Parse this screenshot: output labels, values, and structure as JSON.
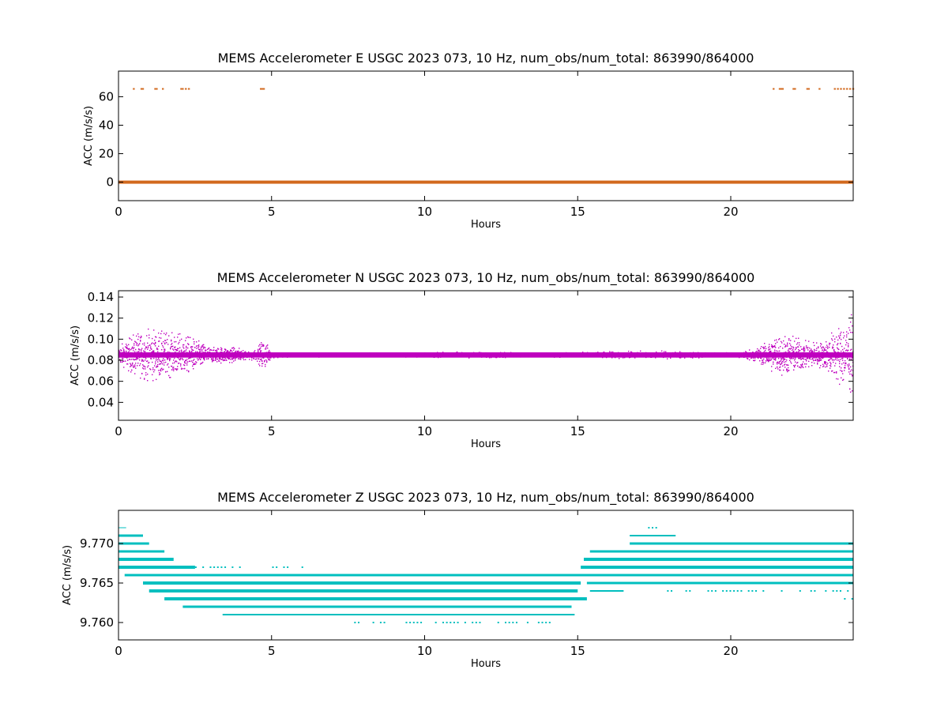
{
  "figure": {
    "background": "#ffffff"
  },
  "chart_data": [
    {
      "type": "scatter",
      "title": "MEMS Accelerometer E USGC 2023 073, 10 Hz, num_obs/num_total: 863990/864000",
      "xlabel": "Hours",
      "ylabel": "ACC (m/s/s)",
      "xlim": [
        0,
        24
      ],
      "ylim": [
        -13,
        78
      ],
      "xticks": [
        0,
        5,
        10,
        15,
        20
      ],
      "yticks": [
        0,
        20,
        40,
        60
      ],
      "grid": false,
      "color": "#d2691e",
      "series": [
        {
          "kind": "band",
          "x": [
            0,
            24
          ],
          "y": [
            0.0,
            0.0
          ],
          "spread": 0.6
        },
        {
          "kind": "spikes",
          "value": 65.5,
          "x": [
            0.5,
            0.75,
            0.8,
            1.2,
            1.25,
            1.45,
            2.05,
            2.1,
            2.2,
            2.3,
            4.65,
            4.7,
            4.75,
            21.4,
            21.6,
            21.65,
            21.7,
            22.05,
            22.1,
            22.5,
            22.55,
            22.9,
            23.4,
            23.5,
            23.6,
            23.7,
            23.8,
            23.9,
            24.0
          ]
        }
      ]
    },
    {
      "type": "scatter",
      "title": "MEMS Accelerometer N USGC 2023 073, 10 Hz, num_obs/num_total: 863990/864000",
      "xlabel": "Hours",
      "ylabel": "ACC (m/s/s)",
      "xlim": [
        0,
        24
      ],
      "ylim": [
        0.023,
        0.146
      ],
      "xticks": [
        0,
        5,
        10,
        15,
        20
      ],
      "yticks": [
        0.04,
        0.06,
        0.08,
        0.1,
        0.12,
        0.14
      ],
      "ytick_labels": [
        "0.04",
        "0.06",
        "0.08",
        "0.10",
        "0.12",
        "0.14"
      ],
      "grid": false,
      "color": "#bf00bf",
      "series": [
        {
          "kind": "noise_envelope",
          "center": 0.085,
          "x": [
            0.0,
            0.5,
            1.0,
            1.5,
            2.0,
            2.5,
            3.0,
            3.5,
            4.0,
            4.5,
            4.7,
            5.0,
            7.0,
            10.0,
            11.0,
            14.0,
            17.5,
            20.0,
            20.9,
            21.5,
            22.0,
            22.5,
            23.0,
            23.5,
            24.0
          ],
          "half_range": [
            0.008,
            0.02,
            0.025,
            0.022,
            0.02,
            0.015,
            0.007,
            0.008,
            0.006,
            0.005,
            0.016,
            0.003,
            0.002,
            0.002,
            0.003,
            0.002,
            0.004,
            0.002,
            0.007,
            0.02,
            0.018,
            0.013,
            0.012,
            0.028,
            0.04
          ]
        }
      ]
    },
    {
      "type": "scatter",
      "title": "MEMS Accelerometer Z USGC 2023 073, 10 Hz, num_obs/num_total: 863990/864000",
      "xlabel": "Hours",
      "ylabel": "ACC (m/s/s)",
      "xlim": [
        0,
        24
      ],
      "ylim": [
        9.7578,
        9.7742
      ],
      "xticks": [
        0,
        5,
        10,
        15,
        20
      ],
      "yticks": [
        9.76,
        9.765,
        9.77
      ],
      "ytick_labels": [
        "9.760",
        "9.765",
        "9.770"
      ],
      "grid": false,
      "color": "#00bfbf",
      "series": [
        {
          "kind": "quantized_levels",
          "segments": [
            {
              "y": 9.772,
              "x0": 0.0,
              "x1": 0.25,
              "w": 1
            },
            {
              "y": 9.771,
              "x0": 0.0,
              "x1": 0.8,
              "w": 3
            },
            {
              "y": 9.77,
              "x0": 0.0,
              "x1": 1.0,
              "w": 3
            },
            {
              "y": 9.769,
              "x0": 0.0,
              "x1": 1.5,
              "w": 3
            },
            {
              "y": 9.768,
              "x0": 0.0,
              "x1": 1.8,
              "w": 4
            },
            {
              "y": 9.767,
              "x0": 0.0,
              "x1": 2.5,
              "w": 4
            },
            {
              "y": 9.767,
              "x0": 2.5,
              "x1": 6.0,
              "w": 1,
              "dotted": true
            },
            {
              "y": 9.766,
              "x0": 0.2,
              "x1": 15.5,
              "w": 3
            },
            {
              "y": 9.765,
              "x0": 0.8,
              "x1": 15.1,
              "w": 4
            },
            {
              "y": 9.764,
              "x0": 1.0,
              "x1": 15.0,
              "w": 4
            },
            {
              "y": 9.763,
              "x0": 1.5,
              "x1": 15.3,
              "w": 4
            },
            {
              "y": 9.762,
              "x0": 2.1,
              "x1": 14.8,
              "w": 3
            },
            {
              "y": 9.761,
              "x0": 3.4,
              "x1": 14.9,
              "w": 2
            },
            {
              "y": 9.76,
              "x0": 7.7,
              "x1": 14.1,
              "w": 1,
              "dotted": true
            },
            {
              "y": 9.772,
              "x0": 17.3,
              "x1": 17.6,
              "w": 1,
              "dotted": true
            },
            {
              "y": 9.771,
              "x0": 16.7,
              "x1": 18.2,
              "w": 2
            },
            {
              "y": 9.77,
              "x0": 16.7,
              "x1": 24.0,
              "w": 3
            },
            {
              "y": 9.769,
              "x0": 15.4,
              "x1": 24.0,
              "w": 3
            },
            {
              "y": 9.768,
              "x0": 15.2,
              "x1": 24.0,
              "w": 4
            },
            {
              "y": 9.767,
              "x0": 15.1,
              "x1": 24.0,
              "w": 4
            },
            {
              "y": 9.766,
              "x0": 15.3,
              "x1": 24.0,
              "w": 3
            },
            {
              "y": 9.765,
              "x0": 15.3,
              "x1": 24.0,
              "w": 3
            },
            {
              "y": 9.764,
              "x0": 15.4,
              "x1": 16.5,
              "w": 2
            },
            {
              "y": 9.764,
              "x0": 17.8,
              "x1": 23.9,
              "w": 1,
              "dotted": true
            },
            {
              "y": 9.763,
              "x0": 23.7,
              "x1": 24.0,
              "w": 1,
              "dotted": true
            }
          ]
        }
      ]
    }
  ]
}
